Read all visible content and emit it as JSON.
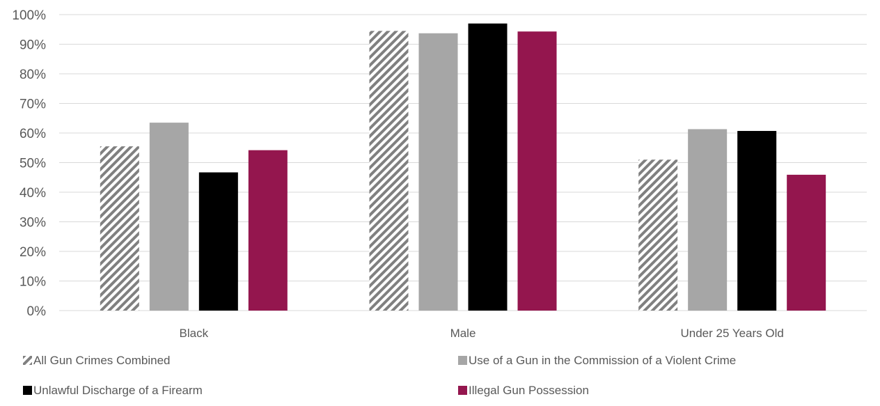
{
  "chart_data": {
    "type": "bar",
    "categories": [
      "Black",
      "Male",
      "Under 25 Years Old"
    ],
    "series": [
      {
        "name": "All Gun Crimes Combined",
        "values": [
          55.5,
          94.5,
          51
        ],
        "color": "#808080",
        "pattern": "diagonal-hatch"
      },
      {
        "name": "Use of a Gun in the Commission of a Violent Crime",
        "values": [
          63.5,
          93.7,
          61.3
        ],
        "color": "#a6a6a6"
      },
      {
        "name": "Unlawful Discharge of a Firearm",
        "values": [
          46.7,
          97,
          60.7
        ],
        "color": "#000000"
      },
      {
        "name": "Illegal Gun Possession",
        "values": [
          54.2,
          94.3,
          45.9
        ],
        "color": "#94164e"
      }
    ],
    "ylim": [
      0,
      100
    ],
    "yticks": [
      "0%",
      "10%",
      "20%",
      "30%",
      "40%",
      "50%",
      "60%",
      "70%",
      "80%",
      "90%",
      "100%"
    ],
    "grid": true,
    "legend_position": "bottom",
    "title": "",
    "xlabel": "",
    "ylabel": ""
  }
}
